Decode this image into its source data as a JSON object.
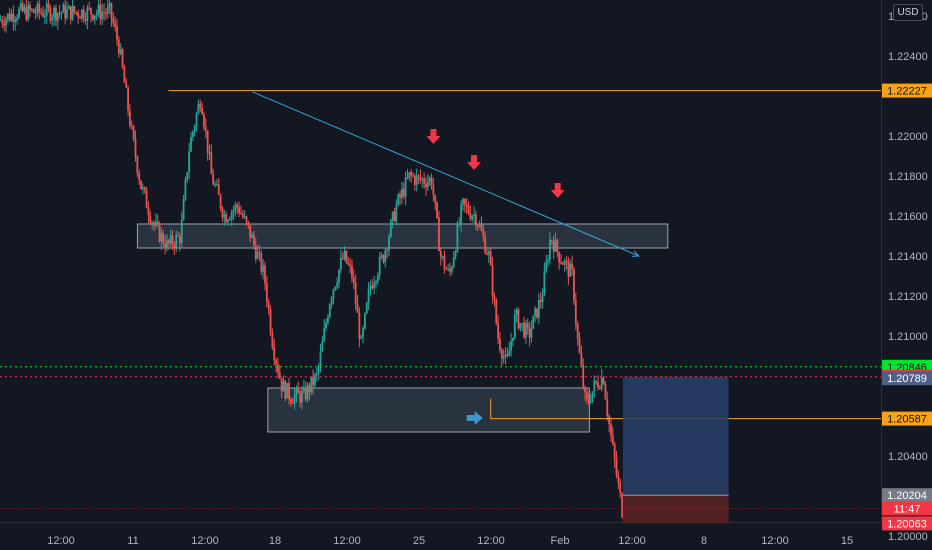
{
  "currency_label": "USD",
  "colors": {
    "background": "#131722",
    "up": "#26a69a",
    "down": "#ef5350",
    "resistance": "#f7a21b",
    "trendline": "#36a7d4",
    "zone": "#3c4a57",
    "arrow_down": "#f23645",
    "arrow_right": "#3d98c8",
    "bid_line": "#00e62e",
    "ask_line": "#f23645",
    "target_box": "#2a3f6a",
    "stop_box": "#5a2323"
  },
  "chart_data": {
    "type": "candlestick",
    "x_tick_labels": [
      "12:00",
      "11",
      "12:00",
      "18",
      "12:00",
      "25",
      "12:00",
      "Feb",
      "12:00",
      "8",
      "12:00",
      "15"
    ],
    "y_tick_labels": [
      "1.22600",
      "1.22400",
      "1.22000",
      "1.21800",
      "1.21600",
      "1.21400",
      "1.21200",
      "1.21000",
      "1.20400",
      "1.20000"
    ],
    "ylim": [
      1.1993,
      1.2268
    ],
    "price_path": [
      {
        "x": 0,
        "y": 1.2258
      },
      {
        "x": 0.02,
        "y": 1.2262
      },
      {
        "x": 0.04,
        "y": 1.2262
      },
      {
        "x": 0.08,
        "y": 1.2262
      },
      {
        "x": 0.11,
        "y": 1.2262
      },
      {
        "x": 0.125,
        "y": 1.2262
      },
      {
        "x": 0.135,
        "y": 1.2245
      },
      {
        "x": 0.15,
        "y": 1.22
      },
      {
        "x": 0.16,
        "y": 1.2175
      },
      {
        "x": 0.175,
        "y": 1.2155
      },
      {
        "x": 0.19,
        "y": 1.2145
      },
      {
        "x": 0.205,
        "y": 1.215
      },
      {
        "x": 0.215,
        "y": 1.2195
      },
      {
        "x": 0.228,
        "y": 1.222
      },
      {
        "x": 0.24,
        "y": 1.218
      },
      {
        "x": 0.255,
        "y": 1.216
      },
      {
        "x": 0.27,
        "y": 1.2165
      },
      {
        "x": 0.285,
        "y": 1.215
      },
      {
        "x": 0.3,
        "y": 1.213
      },
      {
        "x": 0.31,
        "y": 1.2095
      },
      {
        "x": 0.32,
        "y": 1.2075
      },
      {
        "x": 0.33,
        "y": 1.207
      },
      {
        "x": 0.345,
        "y": 1.207
      },
      {
        "x": 0.36,
        "y": 1.208
      },
      {
        "x": 0.375,
        "y": 1.212
      },
      {
        "x": 0.39,
        "y": 1.214
      },
      {
        "x": 0.4,
        "y": 1.213
      },
      {
        "x": 0.41,
        "y": 1.2095
      },
      {
        "x": 0.42,
        "y": 1.2125
      },
      {
        "x": 0.435,
        "y": 1.214
      },
      {
        "x": 0.45,
        "y": 1.2165
      },
      {
        "x": 0.465,
        "y": 1.218
      },
      {
        "x": 0.475,
        "y": 1.2178
      },
      {
        "x": 0.49,
        "y": 1.2178
      },
      {
        "x": 0.5,
        "y": 1.214
      },
      {
        "x": 0.51,
        "y": 1.213
      },
      {
        "x": 0.525,
        "y": 1.2165
      },
      {
        "x": 0.54,
        "y": 1.216
      },
      {
        "x": 0.555,
        "y": 1.214
      },
      {
        "x": 0.565,
        "y": 1.21
      },
      {
        "x": 0.575,
        "y": 1.2085
      },
      {
        "x": 0.585,
        "y": 1.211
      },
      {
        "x": 0.6,
        "y": 1.21
      },
      {
        "x": 0.615,
        "y": 1.212
      },
      {
        "x": 0.625,
        "y": 1.215
      },
      {
        "x": 0.635,
        "y": 1.214
      },
      {
        "x": 0.65,
        "y": 1.213
      },
      {
        "x": 0.655,
        "y": 1.21
      },
      {
        "x": 0.665,
        "y": 1.2065
      },
      {
        "x": 0.675,
        "y": 1.2075
      },
      {
        "x": 0.685,
        "y": 1.208
      },
      {
        "x": 0.69,
        "y": 1.206
      },
      {
        "x": 0.7,
        "y": 1.203
      },
      {
        "x": 0.708,
        "y": 1.2008
      }
    ],
    "levels": [
      {
        "name": "resistance",
        "price": 1.22227,
        "tag": "1.22227"
      },
      {
        "name": "support",
        "price": 1.20587,
        "tag": "1.20587"
      }
    ],
    "zones": [
      {
        "name": "upper-zone",
        "y_top": 1.2156,
        "y_bottom": 1.2144
      },
      {
        "name": "lower-zone",
        "y_top": 1.2074,
        "y_bottom": 1.2052
      }
    ],
    "trendline": {
      "x1": 0.287,
      "y1": 1.2222,
      "x2": 0.725,
      "y2": 1.214
    },
    "arrows_down": [
      {
        "x": 0.492,
        "y": 1.2199
      },
      {
        "x": 0.538,
        "y": 1.2186
      },
      {
        "x": 0.633,
        "y": 1.2172
      }
    ],
    "arrow_right": {
      "x": 0.54,
      "y": 1.2059
    },
    "bid_price": 1.20846,
    "ask_price": 1.20796,
    "current_price": 1.20789,
    "position": {
      "x_start": 0.707,
      "x_end": 0.827,
      "target": 1.20796,
      "entry": 1.20204,
      "stop": 1.20063
    },
    "price_tags": [
      {
        "price": 1.22227,
        "label": "1.22227",
        "bg": "#f7a21b",
        "fg": "#131722"
      },
      {
        "price": 1.20846,
        "label": "1.20846",
        "bg": "#00e62e",
        "fg": "#131722"
      },
      {
        "price": 1.20796,
        "label": "1.20796",
        "bg": "#f23645",
        "fg": "#ffffff"
      },
      {
        "price": 1.20789,
        "label": "1.20789",
        "bg": "#4f5f86",
        "fg": "#ffffff"
      },
      {
        "price": 1.20587,
        "label": "1.20587",
        "bg": "#f7a21b",
        "fg": "#131722"
      },
      {
        "price": 1.20204,
        "label": "1.20204",
        "bg": "#787b86",
        "fg": "#ffffff"
      },
      {
        "price": 1.20063,
        "label": "1.20063",
        "bg": "#f23645",
        "fg": "#ffffff"
      }
    ],
    "countdown": "11:47",
    "countdown_price": 1.20143
  }
}
